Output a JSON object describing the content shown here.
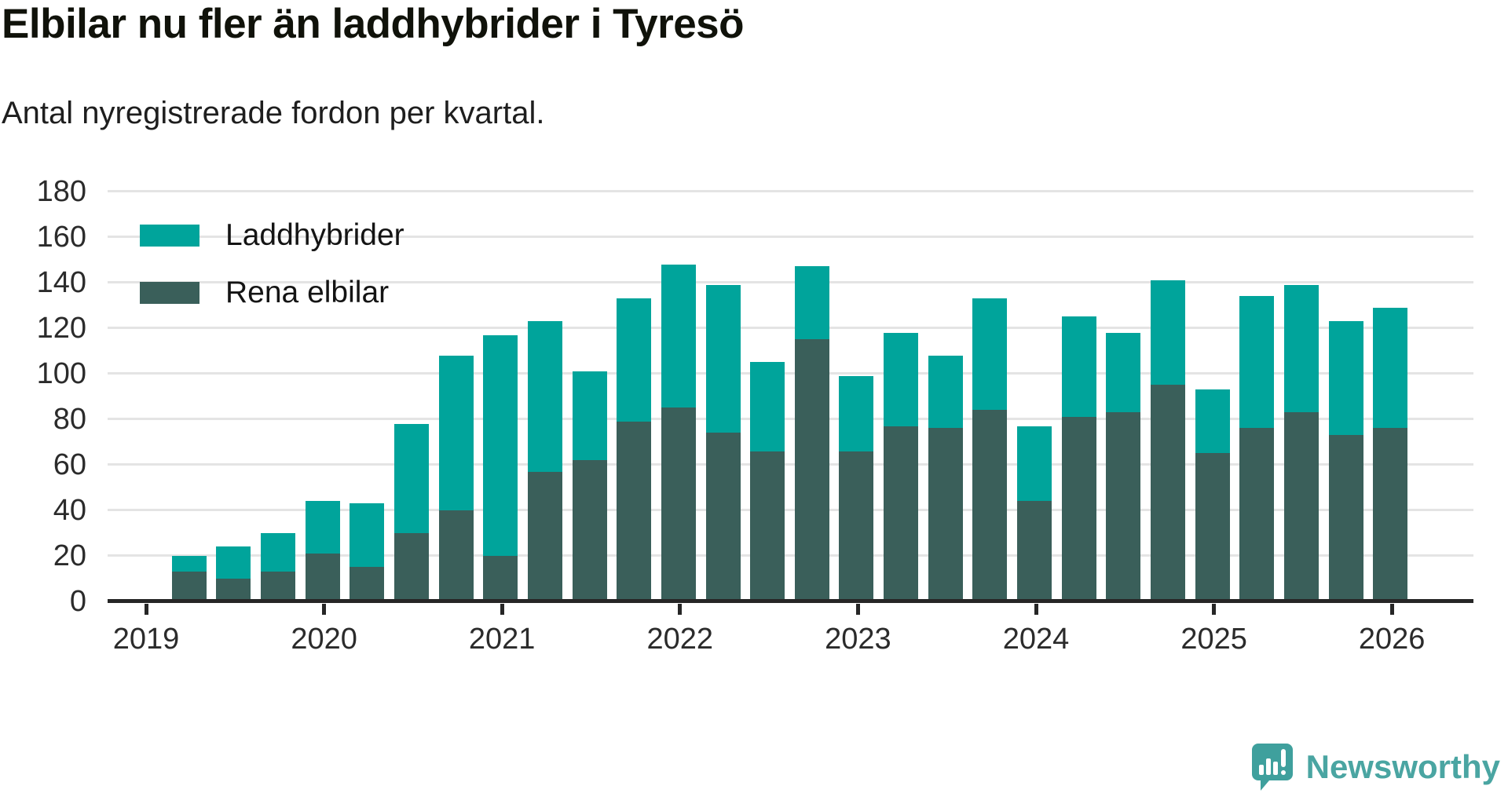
{
  "header": {
    "title": "Elbilar nu fler än laddhybrider i Tyresö",
    "subtitle": "Antal nyregistrerade fordon per kvartal."
  },
  "legend": {
    "items": [
      {
        "label": "Laddhybrider",
        "color": "#00a49b"
      },
      {
        "label": "Rena elbilar",
        "color": "#3a5f5a"
      }
    ]
  },
  "chart_data": {
    "type": "bar",
    "stacked": true,
    "title": "Elbilar nu fler än laddhybrider i Tyresö",
    "subtitle": "Antal nyregistrerade fordon per kvartal.",
    "xlabel": "",
    "ylabel": "",
    "ylim": [
      0,
      180
    ],
    "grid": true,
    "legend_position": "top-left",
    "x": [
      "2019 Q2",
      "2019 Q3",
      "2019 Q4",
      "2020 Q1",
      "2020 Q2",
      "2020 Q3",
      "2020 Q4",
      "2021 Q1",
      "2021 Q2",
      "2021 Q3",
      "2021 Q4",
      "2022 Q1",
      "2022 Q2",
      "2022 Q3",
      "2022 Q4",
      "2023 Q1",
      "2023 Q2",
      "2023 Q3",
      "2023 Q4",
      "2024 Q1",
      "2024 Q2",
      "2024 Q3",
      "2024 Q4",
      "2025 Q1",
      "2025 Q2",
      "2025 Q3",
      "2025 Q4",
      "2026 Q1"
    ],
    "series": [
      {
        "name": "Rena elbilar",
        "color": "#3a5f5a",
        "values": [
          13,
          10,
          13,
          21,
          15,
          30,
          40,
          20,
          57,
          62,
          79,
          85,
          74,
          66,
          115,
          66,
          77,
          76,
          84,
          44,
          81,
          83,
          95,
          65,
          76,
          83,
          73,
          76
        ]
      },
      {
        "name": "Laddhybrider",
        "color": "#00a49b",
        "values": [
          7,
          14,
          17,
          23,
          28,
          48,
          68,
          97,
          66,
          39,
          54,
          63,
          65,
          39,
          32,
          33,
          41,
          32,
          49,
          33,
          44,
          35,
          46,
          28,
          58,
          56,
          50,
          53
        ]
      }
    ],
    "totals": [
      20,
      24,
      30,
      44,
      43,
      78,
      108,
      117,
      123,
      101,
      133,
      148,
      139,
      105,
      147,
      99,
      118,
      108,
      133,
      77,
      125,
      118,
      141,
      93,
      134,
      139,
      123,
      129
    ],
    "y_ticks": [
      0,
      20,
      40,
      60,
      80,
      100,
      120,
      140,
      160,
      180
    ],
    "x_ticks": [
      "2019",
      "2020",
      "2021",
      "2022",
      "2023",
      "2024",
      "2025",
      "2026"
    ]
  },
  "footer": {
    "brand": "Newsworthy",
    "brand_color": "#4aa5a2",
    "brand_icon": "newsworthy-speech-bubble-chart-icon"
  }
}
